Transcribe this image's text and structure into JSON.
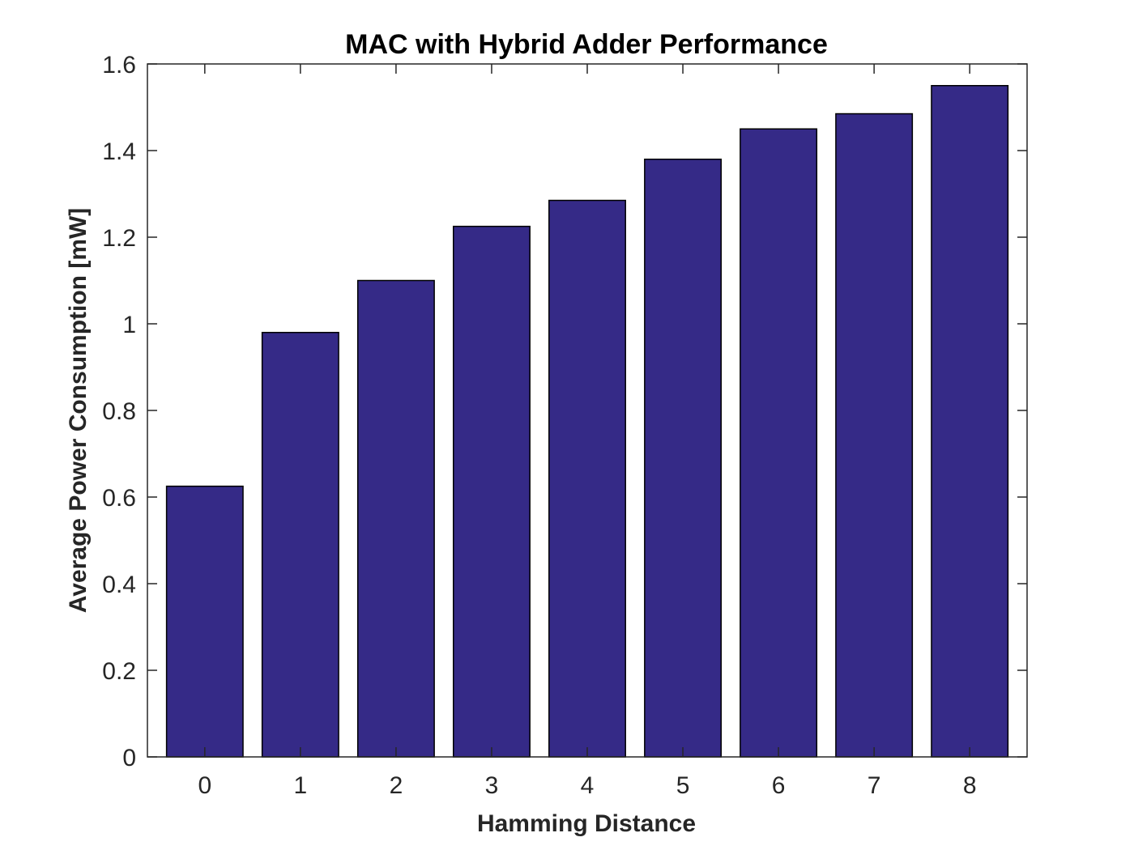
{
  "chart_data": {
    "type": "bar",
    "title": "MAC with Hybrid Adder Performance",
    "xlabel": "Hamming Distance",
    "ylabel": "Average Power Consumption [mW]",
    "categories": [
      "0",
      "1",
      "2",
      "3",
      "4",
      "5",
      "6",
      "7",
      "8"
    ],
    "values": [
      0.625,
      0.98,
      1.1,
      1.225,
      1.285,
      1.38,
      1.45,
      1.485,
      1.55
    ],
    "ylim": [
      0,
      1.6
    ],
    "yticks": [
      0,
      0.2,
      0.4,
      0.6,
      0.8,
      1,
      1.2,
      1.4,
      1.6
    ],
    "ytick_labels": [
      "0",
      "0.2",
      "0.4",
      "0.6",
      "0.8",
      "1",
      "1.2",
      "1.4",
      "1.6"
    ],
    "grid": false,
    "bar_color": "#352a87",
    "edge_color": "#000000"
  }
}
